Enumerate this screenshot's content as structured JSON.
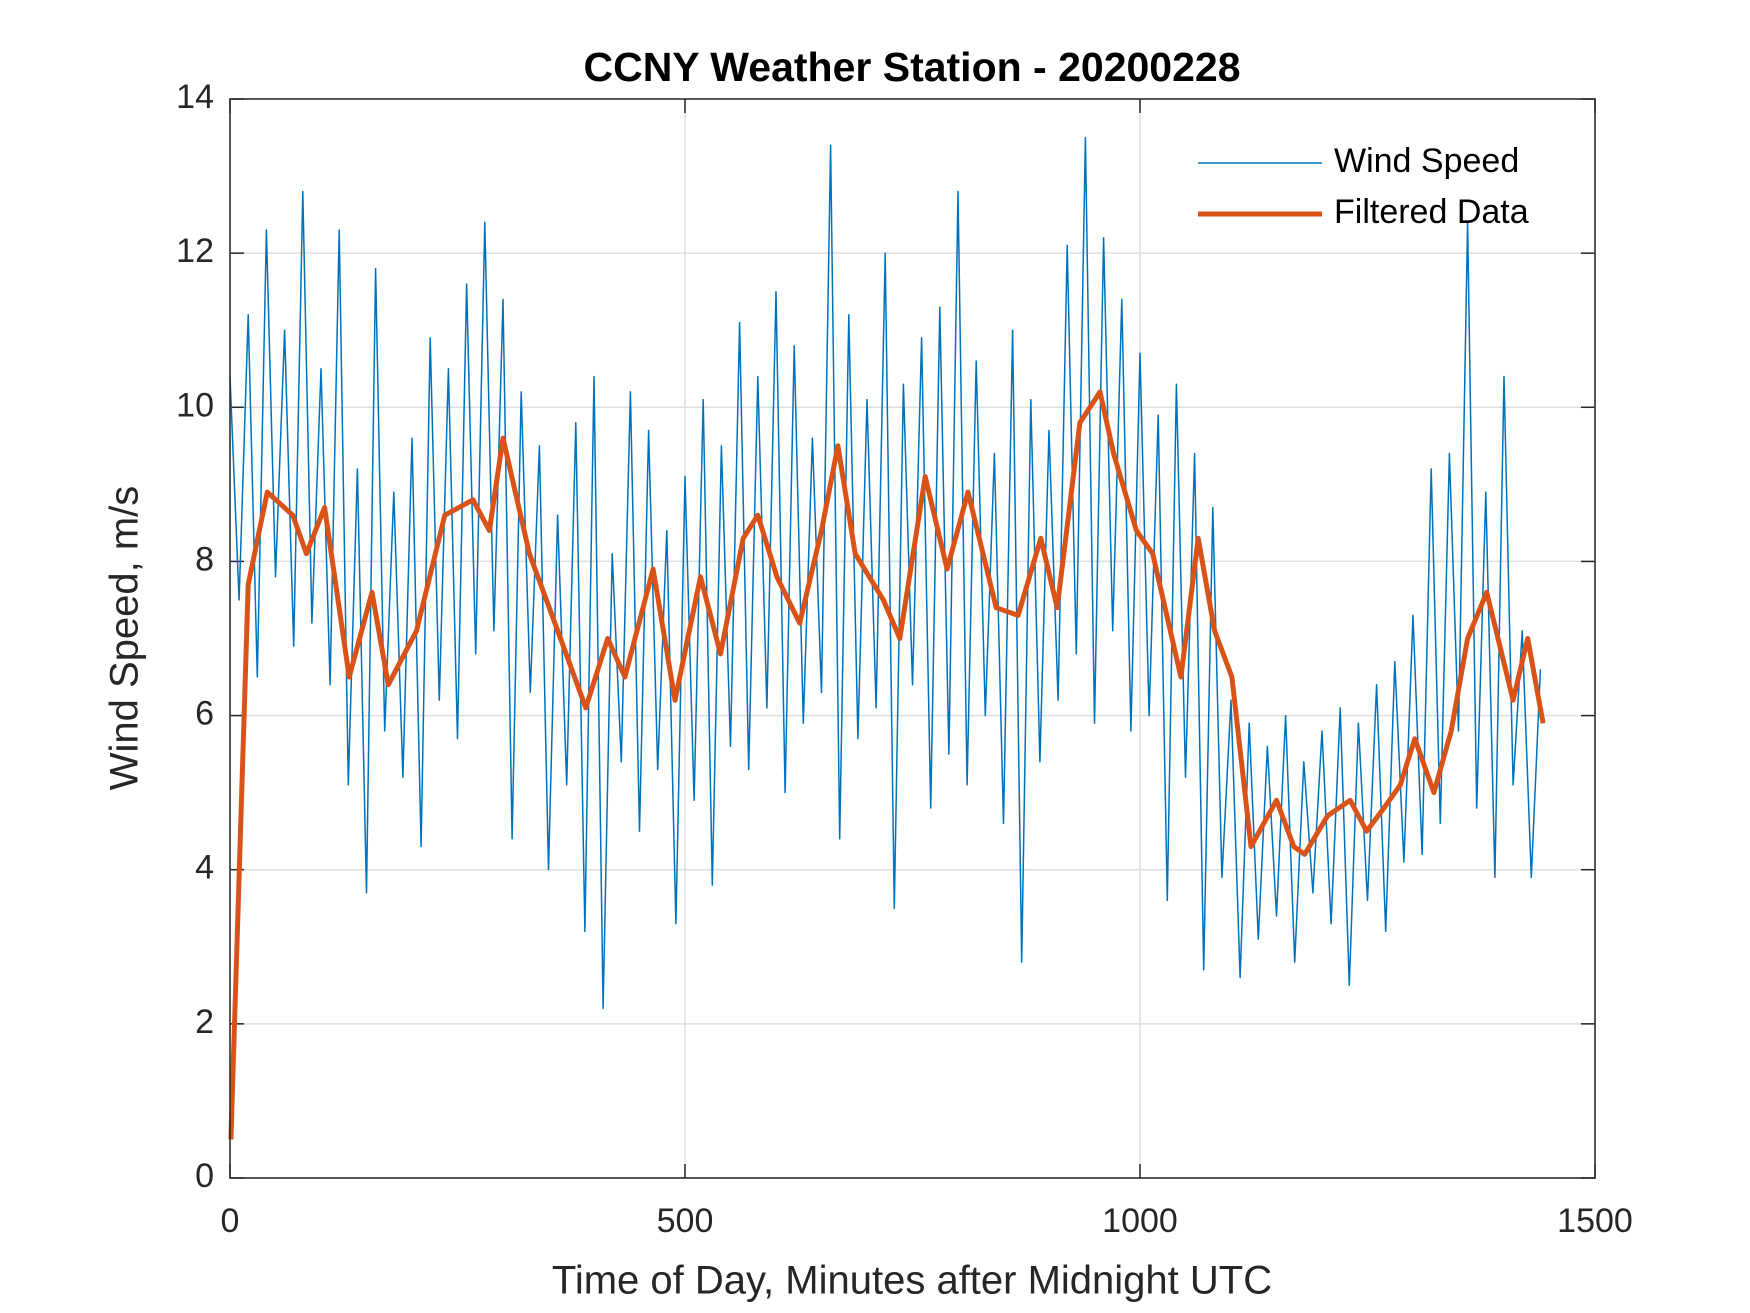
{
  "chart_data": {
    "type": "line",
    "title": "CCNY Weather Station - 20200228",
    "xlabel": "Time of Day, Minutes after Midnight UTC",
    "ylabel": "Wind Speed, m/s",
    "xlim": [
      0,
      1500
    ],
    "xticks": [
      0,
      500,
      1000,
      1500
    ],
    "ylim": [
      0,
      14
    ],
    "yticks": [
      0,
      2,
      4,
      6,
      8,
      10,
      12,
      14
    ],
    "grid": true,
    "legend": "northeast",
    "series": [
      {
        "name": "Wind Speed",
        "color": "#0072bd",
        "x": [
          0,
          10,
          20,
          30,
          40,
          50,
          60,
          70,
          80,
          90,
          100,
          110,
          120,
          130,
          140,
          150,
          160,
          170,
          180,
          190,
          200,
          210,
          220,
          230,
          240,
          250,
          260,
          270,
          280,
          290,
          300,
          310,
          320,
          330,
          340,
          350,
          360,
          370,
          380,
          390,
          400,
          410,
          420,
          430,
          440,
          450,
          460,
          470,
          480,
          490,
          500,
          510,
          520,
          530,
          540,
          550,
          560,
          570,
          580,
          590,
          600,
          610,
          620,
          630,
          640,
          650,
          660,
          670,
          680,
          690,
          700,
          710,
          720,
          730,
          740,
          750,
          760,
          770,
          780,
          790,
          800,
          810,
          820,
          830,
          840,
          850,
          860,
          870,
          880,
          890,
          900,
          910,
          920,
          930,
          940,
          950,
          960,
          970,
          980,
          990,
          1000,
          1010,
          1020,
          1030,
          1040,
          1050,
          1060,
          1070,
          1080,
          1090,
          1100,
          1110,
          1120,
          1130,
          1140,
          1150,
          1160,
          1170,
          1180,
          1190,
          1200,
          1210,
          1220,
          1230,
          1240,
          1250,
          1260,
          1270,
          1280,
          1290,
          1300,
          1310,
          1320,
          1330,
          1340,
          1350,
          1360,
          1370,
          1380,
          1390,
          1400,
          1410,
          1420,
          1430,
          1440
        ],
        "values": [
          10.4,
          7.5,
          11.2,
          6.5,
          12.3,
          7.8,
          11.0,
          6.9,
          12.8,
          7.2,
          10.5,
          6.4,
          12.3,
          5.1,
          9.2,
          3.7,
          11.8,
          5.8,
          8.9,
          5.2,
          9.6,
          4.3,
          10.9,
          6.2,
          10.5,
          5.7,
          11.6,
          6.8,
          12.4,
          7.1,
          11.4,
          4.4,
          10.2,
          6.3,
          9.5,
          4.0,
          8.6,
          5.1,
          9.8,
          3.2,
          10.4,
          2.2,
          8.1,
          5.4,
          10.2,
          4.5,
          9.7,
          5.3,
          8.4,
          3.3,
          9.1,
          4.9,
          10.1,
          3.8,
          9.5,
          5.6,
          11.1,
          5.3,
          10.4,
          6.1,
          11.5,
          5.0,
          10.8,
          5.9,
          9.6,
          6.3,
          13.4,
          4.4,
          11.2,
          5.7,
          10.1,
          6.1,
          12.0,
          3.5,
          10.3,
          6.4,
          10.9,
          4.8,
          11.3,
          5.5,
          12.8,
          5.1,
          10.6,
          6.0,
          9.4,
          4.6,
          11.0,
          2.8,
          10.1,
          5.4,
          9.7,
          6.2,
          12.1,
          6.8,
          13.5,
          5.9,
          12.2,
          7.1,
          11.4,
          5.8,
          10.7,
          6.0,
          9.9,
          3.6,
          10.3,
          5.2,
          9.4,
          2.7,
          8.7,
          3.9,
          6.2,
          2.6,
          5.9,
          3.1,
          5.6,
          3.4,
          6.0,
          2.8,
          5.4,
          3.7,
          5.8,
          3.3,
          6.1,
          2.5,
          5.9,
          3.6,
          6.4,
          3.2,
          6.7,
          4.1,
          7.3,
          4.2,
          9.2,
          4.6,
          9.4,
          5.8,
          12.4,
          4.8,
          8.9,
          3.9,
          10.4,
          5.1,
          7.1,
          3.9,
          6.6
        ]
      },
      {
        "name": "Filtered Data",
        "color": "#d95319",
        "x": [
          1,
          20,
          41,
          69,
          84,
          104,
          131,
          156,
          174,
          205,
          236,
          267,
          285,
          300,
          329,
          354,
          391,
          415,
          434,
          465,
          489,
          517,
          539,
          564,
          580,
          601,
          626,
          650,
          668,
          687,
          718,
          736,
          764,
          788,
          811,
          842,
          866,
          891,
          909,
          934,
          956,
          971,
          996,
          1014,
          1045,
          1064,
          1082,
          1101,
          1122,
          1150,
          1169,
          1181,
          1206,
          1231,
          1249,
          1268,
          1286,
          1302,
          1323,
          1342,
          1360,
          1381,
          1410,
          1426,
          1443
        ],
        "values": [
          0.5,
          7.7,
          8.9,
          8.6,
          8.1,
          8.7,
          6.5,
          7.6,
          6.4,
          7.1,
          8.6,
          8.8,
          8.4,
          9.6,
          8.1,
          7.3,
          6.1,
          7.0,
          6.5,
          7.9,
          6.2,
          7.8,
          6.8,
          8.3,
          8.6,
          7.8,
          7.2,
          8.4,
          9.5,
          8.1,
          7.5,
          7.0,
          9.1,
          7.9,
          8.9,
          7.4,
          7.3,
          8.3,
          7.4,
          9.8,
          10.2,
          9.4,
          8.4,
          8.1,
          6.5,
          8.3,
          7.1,
          6.5,
          4.3,
          4.9,
          4.3,
          4.2,
          4.7,
          4.9,
          4.5,
          4.8,
          5.1,
          5.7,
          5.0,
          5.8,
          7.0,
          7.6,
          6.2,
          7.0,
          5.9
        ]
      }
    ]
  }
}
